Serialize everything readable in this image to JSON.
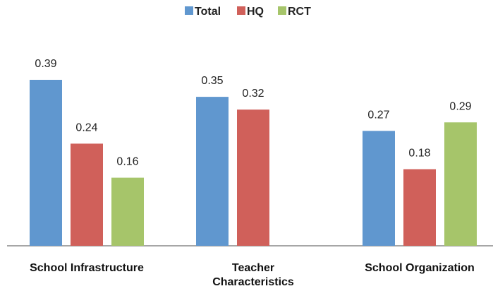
{
  "chart_data": {
    "type": "bar",
    "categories": [
      "School Infrastructure",
      "Teacher Characteristics",
      "School Organization"
    ],
    "series": [
      {
        "name": "Total",
        "color": "#6097cf",
        "values": [
          0.39,
          0.35,
          0.27
        ]
      },
      {
        "name": "HQ",
        "color": "#d0605a",
        "values": [
          0.24,
          0.32,
          0.18
        ]
      },
      {
        "name": "RCT",
        "color": "#a6c56a",
        "values": [
          0.16,
          null,
          0.29
        ]
      }
    ]
  }
}
